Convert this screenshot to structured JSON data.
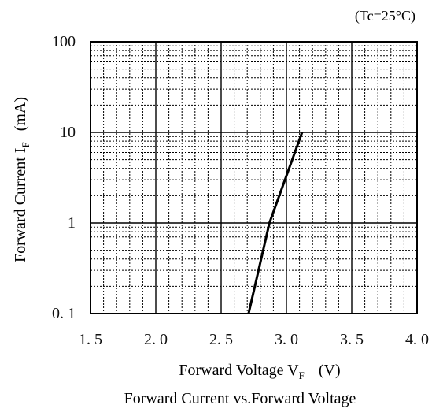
{
  "chart_data": {
    "type": "line",
    "title": "Forward Current vs.Forward Voltage",
    "condition": "(Tc=25°C)",
    "xlabel": {
      "text": "Forward Voltage V",
      "subscript": "F",
      "unit": "(V)"
    },
    "ylabel": {
      "text": "Forward Current I",
      "subscript": "F",
      "unit": "(mA)"
    },
    "x_scale": "linear",
    "y_scale": "log",
    "xlim": [
      1.5,
      4.0
    ],
    "ylim": [
      0.1,
      100
    ],
    "x_ticks": [
      1.5,
      2.0,
      2.5,
      3.0,
      3.5,
      4.0
    ],
    "x_tick_labels": [
      "1. 5",
      "2. 0",
      "2. 5",
      "3. 0",
      "3. 5",
      "4. 0"
    ],
    "y_ticks": [
      0.1,
      1,
      10,
      100
    ],
    "y_tick_labels": [
      "0. 1",
      "1",
      "10",
      "100"
    ],
    "grid": true,
    "series": [
      {
        "x": [
          2.71,
          2.87,
          3.12
        ],
        "y": [
          0.1,
          1,
          10
        ],
        "color": "#000000"
      }
    ]
  }
}
